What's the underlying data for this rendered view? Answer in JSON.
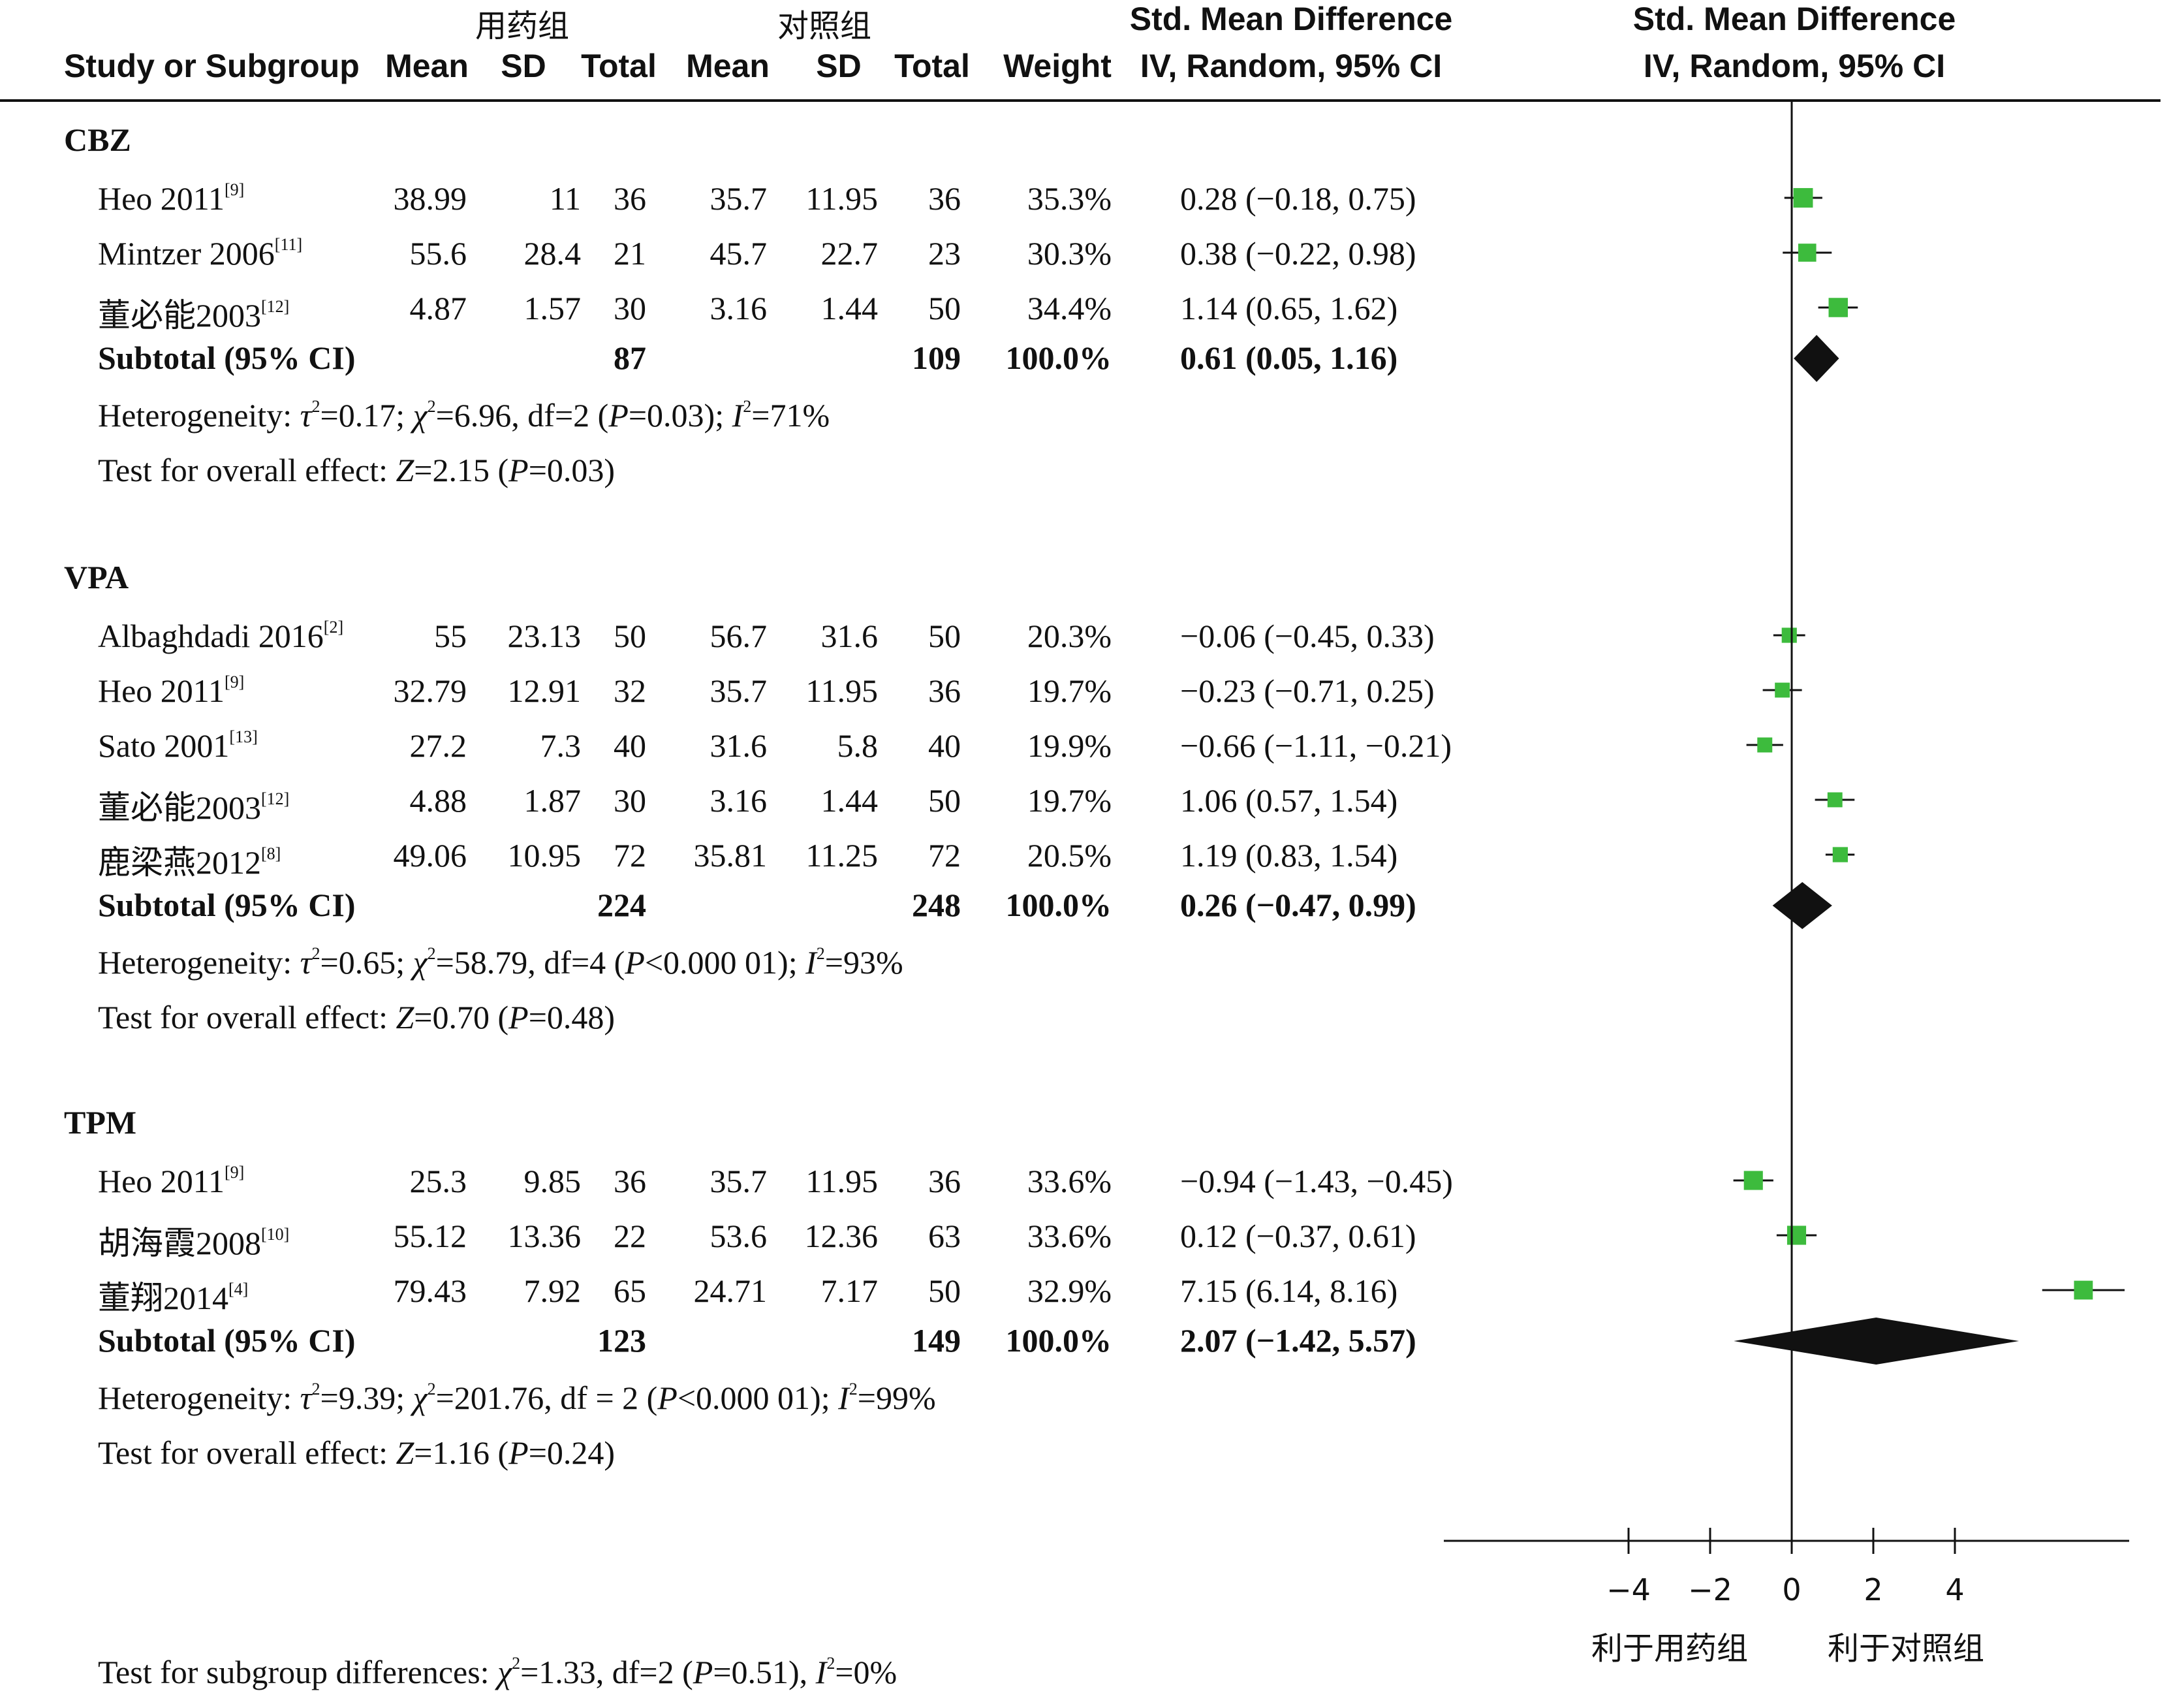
{
  "header": {
    "group1": "用药组",
    "group2": "对照组",
    "smd_title": "Std. Mean Difference",
    "smd_sub": "IV, Random, 95% CI",
    "study_col": "Study or Subgroup",
    "mean": "Mean",
    "sd": "SD",
    "total": "Total",
    "weight": "Weight"
  },
  "subgroups": [
    {
      "name": "CBZ",
      "studies": [
        {
          "study": "Heo 2011",
          "ref": "[9]",
          "m1": "38.99",
          "sd1": "11",
          "n1": "36",
          "m2": "35.7",
          "sd2": "11.95",
          "n2": "36",
          "weight": "35.3%",
          "ci": "0.28 (−0.18, 0.75)",
          "est": 0.28,
          "lo": -0.18,
          "hi": 0.75
        },
        {
          "study": "Mintzer 2006",
          "ref": "[11]",
          "m1": "55.6",
          "sd1": "28.4",
          "n1": "21",
          "m2": "45.7",
          "sd2": "22.7",
          "n2": "23",
          "weight": "30.3%",
          "ci": "0.38 (−0.22, 0.98)",
          "est": 0.38,
          "lo": -0.22,
          "hi": 0.98
        },
        {
          "study": "董必能2003",
          "ref": "[12]",
          "m1": "4.87",
          "sd1": "1.57",
          "n1": "30",
          "m2": "3.16",
          "sd2": "1.44",
          "n2": "50",
          "weight": "34.4%",
          "ci": "1.14 (0.65, 1.62)",
          "est": 1.14,
          "lo": 0.65,
          "hi": 1.62
        }
      ],
      "subtotal": {
        "label": "Subtotal (95% CI)",
        "n1": "87",
        "n2": "109",
        "weight": "100.0%",
        "ci": "0.61 (0.05, 1.16)",
        "est": 0.61,
        "lo": 0.05,
        "hi": 1.16
      },
      "heterogeneity": {
        "prefix": "Heterogeneity: ",
        "tau_val": "=0.17; ",
        "chi_val": "=6.96, df=2 (",
        "p_val": "=0.03); ",
        "i_val": "=71%"
      },
      "overall": {
        "prefix": "Test for overall effect: ",
        "z_val": "=2.15 (",
        "p_val": "=0.03)"
      }
    },
    {
      "name": "VPA",
      "studies": [
        {
          "study": "Albaghdadi 2016",
          "ref": "[2]",
          "m1": "55",
          "sd1": "23.13",
          "n1": "50",
          "m2": "56.7",
          "sd2": "31.6",
          "n2": "50",
          "weight": "20.3%",
          "ci": "−0.06 (−0.45, 0.33)",
          "est": -0.06,
          "lo": -0.45,
          "hi": 0.33
        },
        {
          "study": "Heo 2011",
          "ref": "[9]",
          "m1": "32.79",
          "sd1": "12.91",
          "n1": "32",
          "m2": "35.7",
          "sd2": "11.95",
          "n2": "36",
          "weight": "19.7%",
          "ci": "−0.23 (−0.71, 0.25)",
          "est": -0.23,
          "lo": -0.71,
          "hi": 0.25
        },
        {
          "study": "Sato 2001",
          "ref": "[13]",
          "m1": "27.2",
          "sd1": "7.3",
          "n1": "40",
          "m2": "31.6",
          "sd2": "5.8",
          "n2": "40",
          "weight": "19.9%",
          "ci": "−0.66 (−1.11, −0.21)",
          "est": -0.66,
          "lo": -1.11,
          "hi": -0.21
        },
        {
          "study": "董必能2003",
          "ref": "[12]",
          "m1": "4.88",
          "sd1": "1.87",
          "n1": "30",
          "m2": "3.16",
          "sd2": "1.44",
          "n2": "50",
          "weight": "19.7%",
          "ci": "1.06 (0.57, 1.54)",
          "est": 1.06,
          "lo": 0.57,
          "hi": 1.54
        },
        {
          "study": "鹿梁燕2012",
          "ref": "[8]",
          "m1": "49.06",
          "sd1": "10.95",
          "n1": "72",
          "m2": "35.81",
          "sd2": "11.25",
          "n2": "72",
          "weight": "20.5%",
          "ci": "1.19 (0.83, 1.54)",
          "est": 1.19,
          "lo": 0.83,
          "hi": 1.54
        }
      ],
      "subtotal": {
        "label": "Subtotal (95% CI)",
        "n1": "224",
        "n2": "248",
        "weight": "100.0%",
        "ci": "0.26 (−0.47, 0.99)",
        "est": 0.26,
        "lo": -0.47,
        "hi": 0.99
      },
      "heterogeneity": {
        "prefix": "Heterogeneity: ",
        "tau_val": "=0.65; ",
        "chi_val": "=58.79, df=4 (",
        "p_val": "<0.000 01); ",
        "i_val": "=93%"
      },
      "overall": {
        "prefix": "Test for overall effect: ",
        "z_val": "=0.70 (",
        "p_val": "=0.48)"
      }
    },
    {
      "name": "TPM",
      "studies": [
        {
          "study": "Heo 2011",
          "ref": "[9]",
          "m1": "25.3",
          "sd1": "9.85",
          "n1": "36",
          "m2": "35.7",
          "sd2": "11.95",
          "n2": "36",
          "weight": "33.6%",
          "ci": "−0.94 (−1.43, −0.45)",
          "est": -0.94,
          "lo": -1.43,
          "hi": -0.45
        },
        {
          "study": "胡海霞2008",
          "ref": "[10]",
          "m1": "55.12",
          "sd1": "13.36",
          "n1": "22",
          "m2": "53.6",
          "sd2": "12.36",
          "n2": "63",
          "weight": "33.6%",
          "ci": "0.12 (−0.37, 0.61)",
          "est": 0.12,
          "lo": -0.37,
          "hi": 0.61
        },
        {
          "study": "董翔2014",
          "ref": "[4]",
          "m1": "79.43",
          "sd1": "7.92",
          "n1": "65",
          "m2": "24.71",
          "sd2": "7.17",
          "n2": "50",
          "weight": "32.9%",
          "ci": "7.15 (6.14, 8.16)",
          "est": 7.15,
          "lo": 6.14,
          "hi": 8.16
        }
      ],
      "subtotal": {
        "label": "Subtotal (95% CI)",
        "n1": "123",
        "n2": "149",
        "weight": "100.0%",
        "ci": "2.07 (−1.42, 5.57)",
        "est": 2.07,
        "lo": -1.42,
        "hi": 5.57
      },
      "heterogeneity": {
        "prefix": "Heterogeneity: ",
        "tau_val": "=9.39; ",
        "chi_val": "=201.76, df = 2 (",
        "p_val": "<0.000 01); ",
        "i_val": "=99%"
      },
      "overall": {
        "prefix": "Test for overall effect: ",
        "z_val": "=1.16 (",
        "p_val": "=0.24)"
      }
    }
  ],
  "subgroup_test": {
    "prefix": "Test for subgroup differences: ",
    "chi_val": "=1.33, df=2 (",
    "p_val": "=0.51), ",
    "i_val": "=0%"
  },
  "symbols": {
    "tau": "τ",
    "chi": "χ",
    "sq": "2",
    "P": "P",
    "I": "I",
    "Z": "Z"
  },
  "chart_data": {
    "type": "scatter",
    "xticks": [
      -4,
      -2,
      0,
      2,
      4
    ],
    "xtick_labels": [
      "−4",
      "−2",
      "0",
      "2",
      "4"
    ],
    "xlim": [
      -8.4,
      8.4
    ],
    "left_label": "利于用药组",
    "right_label": "利于对照组",
    "colors": {
      "study_marker": "#3dbb3d",
      "diamond": "#111111"
    }
  }
}
